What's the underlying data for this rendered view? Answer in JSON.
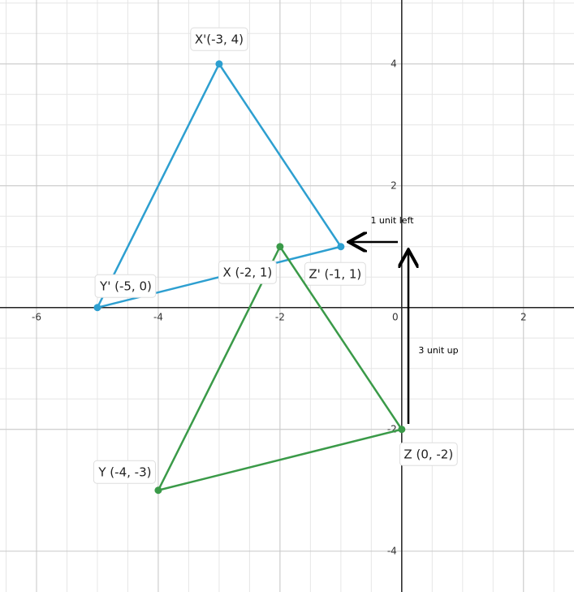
{
  "chart_data": {
    "type": "line",
    "xlim": [
      -6.6,
      2.83
    ],
    "ylim": [
      -4.67,
      5.05
    ],
    "xticks": [
      -6,
      -4,
      -2,
      0,
      2
    ],
    "yticks": [
      -4,
      -2,
      2,
      4
    ],
    "grid": true,
    "closed": true,
    "series": [
      {
        "color": "#2d9fd0",
        "x": [
          -3,
          -5,
          -1
        ],
        "values": [
          4,
          0,
          1
        ],
        "point_labels": [
          "X'(-3, 4)",
          "Y' (-5, 0)",
          "Z' (-1, 1)"
        ]
      },
      {
        "color": "#3a9a48",
        "x": [
          -2,
          -4,
          0
        ],
        "values": [
          1,
          -3,
          -2
        ],
        "point_labels": [
          "X (-2, 1)",
          "Y (-4, -3)",
          "Z (0, -2)"
        ]
      }
    ],
    "annotations": [
      "1 unit left",
      "3 unit up"
    ]
  }
}
